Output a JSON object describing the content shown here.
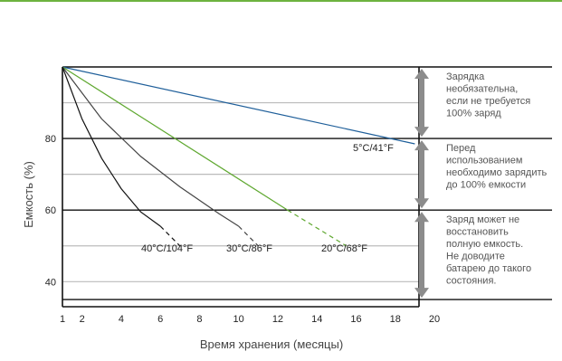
{
  "chart_data": {
    "type": "line",
    "xlabel": "Время хранения (месяцы)",
    "ylabel": "Емкость (%)",
    "xlim": [
      1,
      20
    ],
    "ylim": [
      33,
      100
    ],
    "x_ticks": [
      "1",
      "2",
      "4",
      "6",
      "8",
      "10",
      "12",
      "14",
      "16",
      "18",
      "20"
    ],
    "y_ticks": [
      "80",
      "60",
      "40"
    ],
    "grid": true,
    "series": [
      {
        "name": "5°C/41°F",
        "color": "#1f5f9a",
        "x": [
          1,
          19
        ],
        "y": [
          100,
          78.5
        ],
        "dashed_from": null
      },
      {
        "name": "20°C/68°F",
        "color": "#5fa830",
        "x": [
          1,
          12.5,
          15.5
        ],
        "y": [
          100,
          60,
          50
        ],
        "dashed_from": 12.5
      },
      {
        "name": "30°C/86°F",
        "color": "#444444",
        "x": [
          1,
          3,
          5,
          7,
          9,
          10,
          11
        ],
        "y": [
          100,
          85.5,
          75,
          66.5,
          59,
          55.5,
          50
        ],
        "dashed_from": 10
      },
      {
        "name": "40°C/104°F",
        "color": "#111111",
        "x": [
          1,
          2,
          3,
          4,
          5,
          6,
          7
        ],
        "y": [
          100,
          85.5,
          74.5,
          66,
          59.5,
          55.5,
          50
        ],
        "dashed_from": 5.6
      }
    ],
    "zones": [
      {
        "text": [
          "Зарядка",
          "необязательна,",
          "если не требуется",
          "100% заряд"
        ]
      },
      {
        "text": [
          "Перед",
          "использованием",
          "необходимо зарядить",
          "до 100% емкости"
        ]
      },
      {
        "text": [
          "Заряд может не",
          "восстановить",
          "полную емкость.",
          "Не доводите",
          "батарею до такого",
          "состояния."
        ]
      }
    ],
    "colors": {
      "accent": "#6db33f",
      "grid": "#bbbbbb",
      "arrow": "#8c8c8c"
    }
  }
}
